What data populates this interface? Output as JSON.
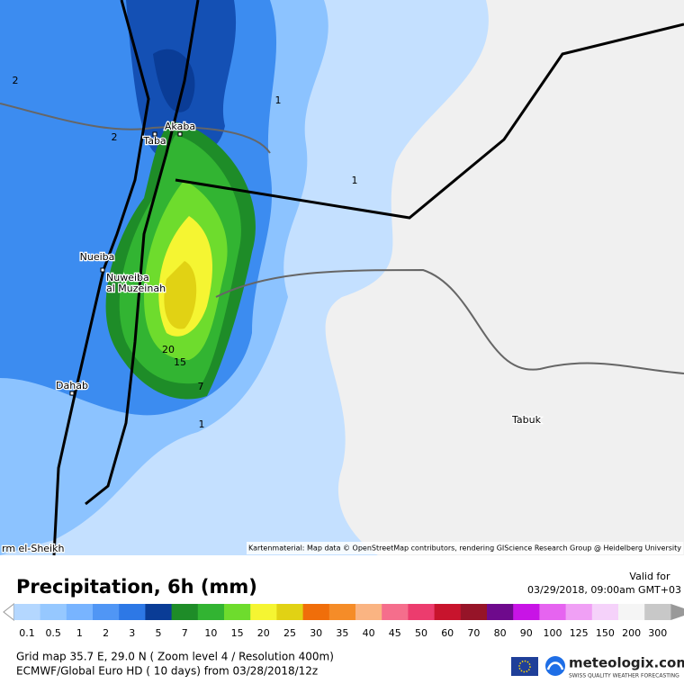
{
  "map": {
    "place_labels": [
      "Akaba",
      "Taba",
      "Nueiba",
      "Nuweiba",
      "al Muzeinah",
      "Dahab",
      "Tabuk",
      "rm el-Sheikh"
    ],
    "contour_labels": [
      "2",
      "2",
      "1",
      "1",
      "20",
      "15",
      "7",
      "1"
    ],
    "attribution": "Kartenmaterial: Map data © OpenStreetMap contributors, rendering GIScience Research Group @ Heidelberg University"
  },
  "header": {
    "title": "Precipitation, 6h (mm)",
    "valid_label": "Valid for",
    "valid_time": "03/29/2018, 09:00am GMT+03"
  },
  "scale": {
    "labels": [
      "0.1",
      "0.5",
      "1",
      "2",
      "3",
      "5",
      "7",
      "10",
      "15",
      "20",
      "25",
      "30",
      "35",
      "40",
      "45",
      "50",
      "60",
      "70",
      "80",
      "90",
      "100",
      "125",
      "150",
      "200",
      "300"
    ],
    "colors": [
      "#b4d7ff",
      "#96c8ff",
      "#78b4ff",
      "#5096f5",
      "#2d78e6",
      "#0a3c96",
      "#1e8c28",
      "#32b432",
      "#6edc2d",
      "#f5f532",
      "#e1d214",
      "#f06e0a",
      "#f58c28",
      "#fab482",
      "#f56e8c",
      "#ec3c6e",
      "#c8142d",
      "#961428",
      "#6e0a8c",
      "#c814e6",
      "#e664f0",
      "#f0a0f5",
      "#f5d2fa",
      "#f5f5f5",
      "#c8c8c8"
    ]
  },
  "footer": {
    "line1": "Grid map 35.7 E, 29.0 N ( Zoom level 4 / Resolution 400m)",
    "line2": "ECMWF/Global Euro HD ( 10 days) from 03/28/2018/12z",
    "brand": "meteologix.com",
    "tagline": "SWISS QUALITY WEATHER FORECASTING"
  }
}
